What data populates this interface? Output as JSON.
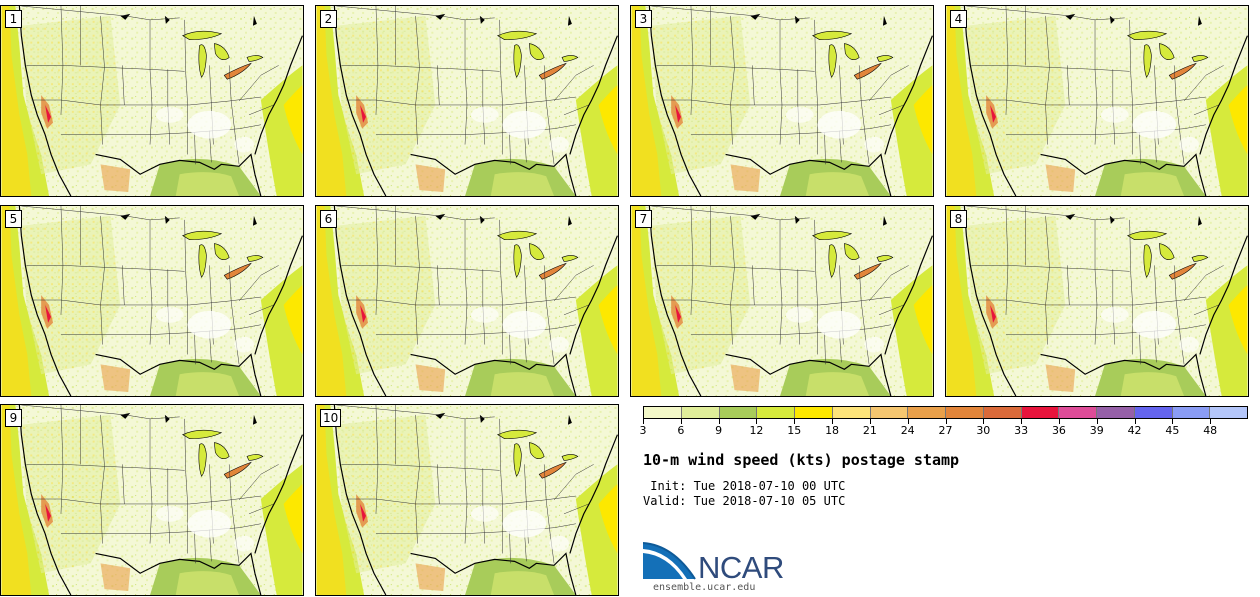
{
  "panels": [
    {
      "label": "1"
    },
    {
      "label": "2"
    },
    {
      "label": "3"
    },
    {
      "label": "4"
    },
    {
      "label": "5"
    },
    {
      "label": "6"
    },
    {
      "label": "7"
    },
    {
      "label": "8"
    },
    {
      "label": "9"
    },
    {
      "label": "10"
    }
  ],
  "colorbar": {
    "ticks": [
      "3",
      "6",
      "9",
      "12",
      "15",
      "18",
      "21",
      "24",
      "27",
      "30",
      "33",
      "36",
      "39",
      "42",
      "45",
      "48"
    ],
    "colors": [
      "#f3f8c8",
      "#e0ee9a",
      "#a8cc5a",
      "#d6ea3c",
      "#fde800",
      "#fde47a",
      "#f5c670",
      "#e9a04a",
      "#e2853a",
      "#da6a3a",
      "#e8143c",
      "#de4c98",
      "#9660a8",
      "#6464ee",
      "#8a9cf4",
      "#b4c6fa"
    ]
  },
  "title": "10-m wind speed (kts) postage stamp",
  "init": " Init: Tue 2018-07-10 00 UTC",
  "valid": "Valid: Tue 2018-07-10 05 UTC",
  "logo": {
    "text": "NCAR",
    "url": "ensemble.ucar.edu"
  }
}
